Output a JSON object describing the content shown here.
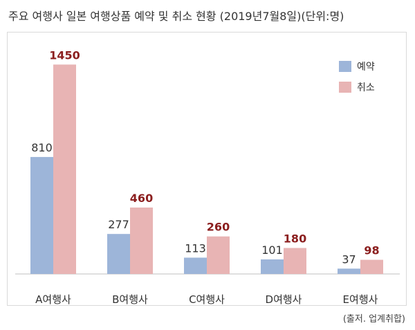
{
  "chart_data": {
    "type": "bar",
    "title": "주요 여행사 일본 여행상품 예약 및 취소 현황 (2019년7월8일)(단위:명)",
    "categories": [
      "A여행사",
      "B여행사",
      "C여행사",
      "D여행사",
      "E여행사"
    ],
    "series": [
      {
        "name": "예약",
        "values": [
          810,
          277,
          113,
          101,
          37
        ],
        "color": "#9db5d9",
        "label_color": "#333333"
      },
      {
        "name": "취소",
        "values": [
          1450,
          460,
          260,
          180,
          98
        ],
        "color": "#e8b4b4",
        "label_color": "#8b1e1e"
      }
    ],
    "ylim": [
      0,
      1600
    ],
    "grid": false,
    "legend": "top-right",
    "baseline_color": "#bfbfbf"
  },
  "source": "(출저. 업계취합)"
}
